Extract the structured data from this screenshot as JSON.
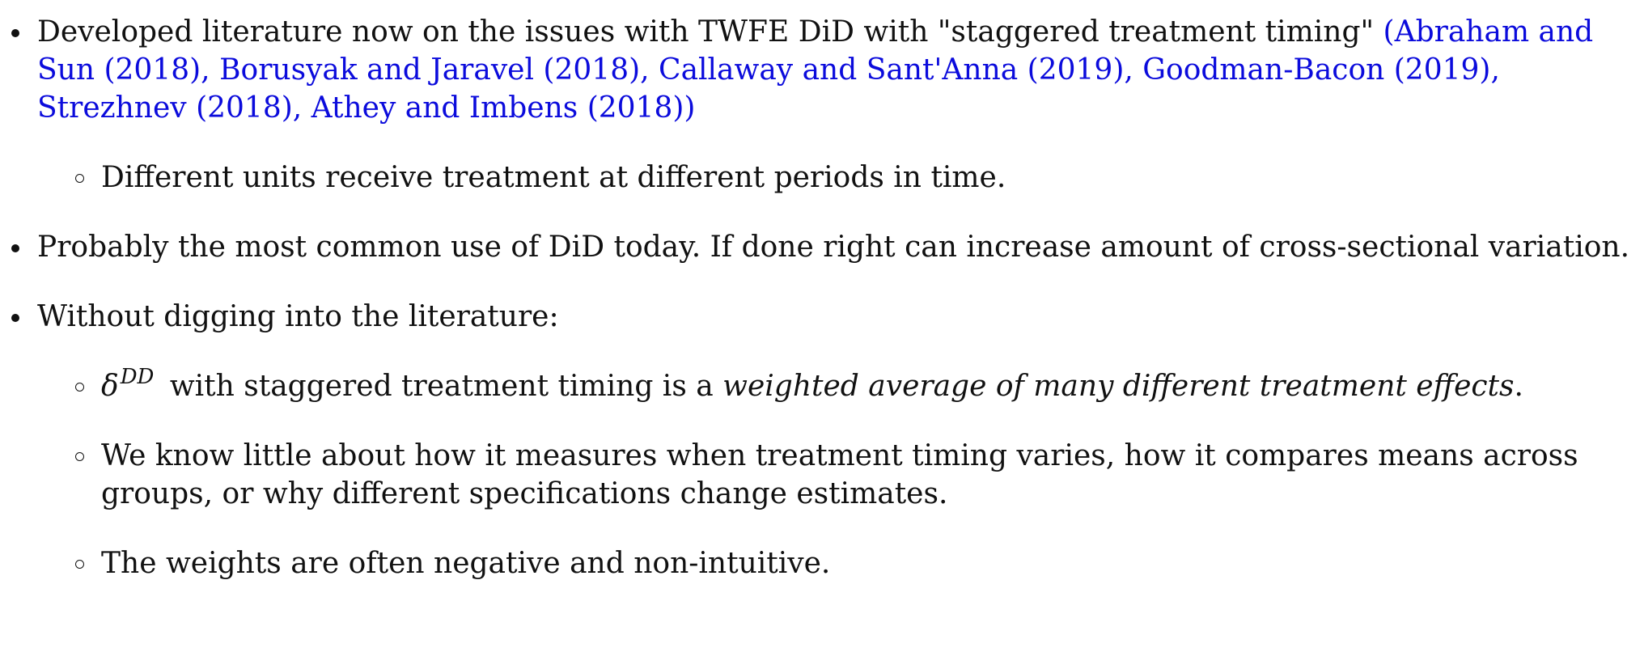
{
  "bullets": [
    {
      "text": "Developed literature now on the issues with TWFE DiD with \"staggered treatment timing\" ",
      "citation": "(Abraham and Sun (2018), Borusyak and Jaravel (2018), Callaway and Sant'Anna (2019), Goodman-Bacon (2019), Strezhnev (2018), Athey and Imbens (2018))",
      "sub": [
        {
          "text": "Different units receive treatment at different periods in time."
        }
      ]
    },
    {
      "text": "Probably the most common use of DiD today. If done right can increase amount of cross-sectional variation."
    },
    {
      "text": "Without digging into the literature:",
      "sub": [
        {
          "math_symbol": "δ",
          "math_superscript": "DD",
          "text_before_em": " with staggered treatment timing is a ",
          "em": "weighted average of many different treatment effects",
          "text_after_em": "."
        },
        {
          "text": "We know little about how it measures when treatment timing varies, how it compares means across groups, or why different specifications change estimates."
        },
        {
          "text": "The weights are often negative and non-intuitive."
        }
      ]
    }
  ],
  "colors": {
    "citation": "#0b0bdc",
    "text": "#111111"
  }
}
